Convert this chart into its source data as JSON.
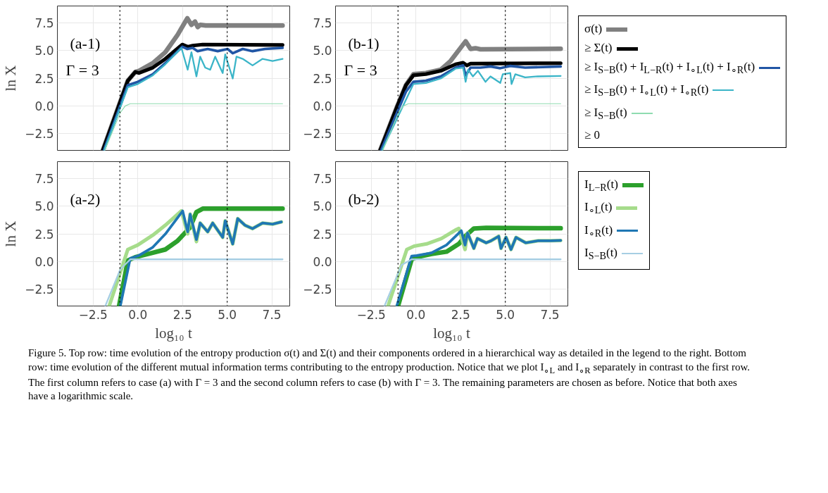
{
  "chart_data": [
    {
      "type": "line",
      "annotations": [
        "(a-1)",
        "Γ = 3"
      ],
      "ylabel": "ln X",
      "xlim": [
        -4.5,
        8.5
      ],
      "ylim": [
        -4,
        9
      ],
      "xticks": [
        {
          "value": -2.5,
          "label": null
        },
        {
          "value": 0,
          "label": null
        },
        {
          "value": 2.5,
          "label": null
        },
        {
          "value": 5,
          "label": null
        },
        {
          "value": 7.5,
          "label": null
        }
      ],
      "yticks": [
        {
          "value": -2.5,
          "label": "−2.5"
        },
        {
          "value": 0,
          "label": "0.0"
        },
        {
          "value": 2.5,
          "label": "2.5"
        },
        {
          "value": 5,
          "label": "5.0"
        },
        {
          "value": 7.5,
          "label": "7.5"
        }
      ],
      "tick_labels": "y",
      "grid": true,
      "ref_lines": [
        {
          "axis": "x",
          "value": -1,
          "color": "#000000",
          "line_style": "dotted"
        },
        {
          "axis": "x",
          "value": 5,
          "color": "#000000",
          "line_style": "dotted"
        }
      ],
      "series": [
        {
          "color": "#808080",
          "x": [
            -1.96,
            -0.56,
            -0.14,
            0.07,
            0.84,
            1.54,
            2.23,
            2.77,
            3.0,
            3.2,
            3.35,
            3.5,
            3.8,
            8.1
          ],
          "values": [
            -4,
            2.27,
            3.06,
            3.16,
            3.85,
            4.84,
            6.41,
            7.9,
            7.3,
            7.6,
            7.1,
            7.3,
            7.24,
            7.24
          ]
        },
        {
          "color": "#000000",
          "x": [
            -1.96,
            -0.56,
            -0.14,
            0.07,
            0.84,
            1.54,
            2.49,
            2.79,
            3.07,
            3.63,
            8.1
          ],
          "values": [
            -4,
            2.27,
            3.06,
            2.96,
            3.45,
            4.24,
            5.53,
            5.33,
            5.43,
            5.53,
            5.49
          ]
        },
        {
          "color": "#2156a5",
          "x": [
            -1.9,
            -0.56,
            0,
            0.84,
            1.54,
            2.49,
            2.77,
            3.07,
            3.35,
            3.91,
            4.47,
            5.03,
            5.31,
            5.87,
            6.42,
            7.12,
            8.1
          ],
          "values": [
            -4,
            1.87,
            2.17,
            2.86,
            3.85,
            5.33,
            5.13,
            5.23,
            4.93,
            5.13,
            4.93,
            5.13,
            4.74,
            5.13,
            4.93,
            5.13,
            5.23
          ]
        },
        {
          "color": "#3bb5c8",
          "x": [
            -1.88,
            -0.56,
            0,
            0.84,
            1.54,
            2.44,
            2.79,
            3.0,
            3.28,
            3.49,
            3.77,
            4.05,
            4.33,
            4.75,
            4.89,
            5.31,
            5.52,
            5.87,
            6.42,
            6.98,
            7.54,
            8.1
          ],
          "values": [
            -4,
            1.68,
            1.97,
            2.76,
            3.75,
            5.23,
            3.26,
            4.84,
            2.66,
            4.44,
            3.45,
            3.26,
            4.44,
            2.96,
            4.64,
            2.47,
            4.44,
            4.24,
            3.65,
            4.24,
            4.05,
            4.24
          ]
        },
        {
          "color": "#8fdcb0",
          "x": [
            -1.85,
            -0.98,
            -0.7,
            -0.42,
            8.1
          ],
          "values": [
            -4,
            -0.6,
            0.0,
            0.2,
            0.2
          ]
        }
      ]
    },
    {
      "type": "line",
      "annotations": [
        "(b-1)",
        "Γ = 3"
      ],
      "xlim": [
        -4.5,
        8.5
      ],
      "ylim": [
        -4,
        9
      ],
      "xticks": [
        {
          "value": -2.5,
          "label": null
        },
        {
          "value": 0,
          "label": null
        },
        {
          "value": 2.5,
          "label": null
        },
        {
          "value": 5,
          "label": null
        },
        {
          "value": 7.5,
          "label": null
        }
      ],
      "yticks": [
        {
          "value": -2.5,
          "label": "−2.5"
        },
        {
          "value": 0,
          "label": "0.0"
        },
        {
          "value": 2.5,
          "label": "2.5"
        },
        {
          "value": 5,
          "label": "5.0"
        },
        {
          "value": 7.5,
          "label": "7.5"
        }
      ],
      "tick_labels": "y",
      "grid": true,
      "legend": "right",
      "ref_lines": [
        {
          "axis": "x",
          "value": -1,
          "color": "#000000",
          "line_style": "dotted"
        },
        {
          "axis": "x",
          "value": 5,
          "color": "#000000",
          "line_style": "dotted"
        }
      ],
      "series": [
        {
          "name": "σ(t)",
          "color": "#808080",
          "x": [
            -2.0,
            -1.04,
            -0.56,
            -0.14,
            0.56,
            1.39,
            1.94,
            2.78,
            3.06,
            3.33,
            3.61,
            8.1
          ],
          "values": [
            -4,
            0,
            1.87,
            2.86,
            2.96,
            3.26,
            4.05,
            5.82,
            5.13,
            5.2,
            5.1,
            5.15
          ]
        },
        {
          "name": "≥ Σ(t)",
          "color": "#000000",
          "x": [
            -2.0,
            -1.04,
            -0.56,
            -0.14,
            0.56,
            1.39,
            2.22,
            2.64,
            2.85,
            3.06,
            8.1
          ],
          "values": [
            -4,
            0,
            1.87,
            2.76,
            2.86,
            3.16,
            3.75,
            3.89,
            3.65,
            3.81,
            3.85
          ]
        },
        {
          "name": "≥ I$_{S−B}$(t) + I$_{L−R}$(t) + I$_{∘L}$(t) + I$_{∘R}$(t)",
          "color": "#2156a5",
          "x": [
            -1.95,
            -0.56,
            -0.14,
            0.56,
            1.39,
            2.22,
            2.64,
            2.78,
            3.06,
            3.61,
            4.17,
            4.72,
            5.28,
            6.11,
            8.1
          ],
          "values": [
            -4,
            1.28,
            2.17,
            2.27,
            2.66,
            3.45,
            3.65,
            2.76,
            3.45,
            3.45,
            3.55,
            3.4,
            3.6,
            3.45,
            3.55
          ]
        },
        {
          "name": "≥ I$_{S−B}$(t) + I$_{∘L}$(t) + I$_{∘R}$(t)",
          "color": "#3bb5c8",
          "x": [
            -1.9,
            -0.14,
            0.56,
            1.39,
            2.22,
            2.64,
            2.78,
            2.92,
            3.19,
            3.47,
            3.89,
            4.17,
            4.72,
            4.86,
            5.28,
            5.35,
            5.56,
            6.11,
            6.81,
            8.1
          ],
          "values": [
            -4,
            1.97,
            2.07,
            2.47,
            3.36,
            3.45,
            2.17,
            3.26,
            2.66,
            3.16,
            2.17,
            2.66,
            2.07,
            2.86,
            2.96,
            1.97,
            2.86,
            2.57,
            2.66,
            2.7
          ]
        },
        {
          "name": "≥ I$_{S−B}$(t)",
          "color": "#8fdcb0",
          "x": [
            -1.85,
            -0.98,
            -0.7,
            -0.42,
            8.1
          ],
          "values": [
            -4,
            -0.6,
            0.0,
            0.2,
            0.2
          ]
        },
        {
          "name": "≥ 0",
          "color": null
        }
      ]
    },
    {
      "type": "line",
      "annotations": [
        "(a-2)"
      ],
      "ylabel": "ln X",
      "xlabel": "log₁₀ t",
      "xlim": [
        -4.5,
        8.5
      ],
      "ylim": [
        -4,
        9
      ],
      "xticks": [
        {
          "value": -2.5,
          "label": "−2.5"
        },
        {
          "value": 0,
          "label": "0.0"
        },
        {
          "value": 2.5,
          "label": "2.5"
        },
        {
          "value": 5,
          "label": "5.0"
        },
        {
          "value": 7.5,
          "label": "7.5"
        }
      ],
      "yticks": [
        {
          "value": -2.5,
          "label": "−2.5"
        },
        {
          "value": 0,
          "label": "0.0"
        },
        {
          "value": 2.5,
          "label": "2.5"
        },
        {
          "value": 5,
          "label": "5.0"
        },
        {
          "value": 7.5,
          "label": "7.5"
        }
      ],
      "grid": true,
      "ref_lines": [
        {
          "axis": "x",
          "value": -1,
          "color": "#000000",
          "line_style": "dotted"
        },
        {
          "axis": "x",
          "value": 5,
          "color": "#000000",
          "line_style": "dotted"
        }
      ],
      "series": [
        {
          "color": "#2ca02c",
          "x": [
            -1.05,
            -0.56,
            -0.14,
            0.84,
            1.54,
            2.23,
            2.93,
            3.28,
            3.63,
            8.1
          ],
          "values": [
            -4,
            0.1,
            0.4,
            0.79,
            1.09,
            1.88,
            3.08,
            4.46,
            4.76,
            4.76
          ]
        },
        {
          "color": "#a6dc8b",
          "x": [
            -1.6,
            -0.56,
            0,
            0.84,
            1.54,
            2.44,
            2.79,
            2.93,
            3.28,
            3.49,
            3.91,
            4.19,
            4.75,
            4.89,
            5.31,
            5.59,
            6.0,
            6.42,
            6.98,
            7.54,
            8.03
          ],
          "values": [
            -4,
            1.09,
            1.49,
            2.38,
            3.27,
            4.56,
            2.5,
            4.27,
            1.8,
            3.47,
            2.68,
            3.47,
            2.18,
            3.67,
            1.59,
            3.87,
            3.27,
            2.97,
            3.47,
            3.37,
            3.57
          ]
        },
        {
          "color": "#1f77b4",
          "x": [
            -0.98,
            -0.42,
            0,
            0.84,
            1.54,
            2.51,
            2.79,
            2.93,
            3.28,
            3.49,
            3.91,
            4.19,
            4.75,
            4.89,
            5.31,
            5.59,
            6.0,
            6.42,
            6.98,
            7.54,
            8.03
          ],
          "values": [
            -4,
            0.3,
            0.5,
            1.29,
            2.48,
            4.56,
            2.68,
            4.27,
            1.98,
            3.47,
            2.68,
            3.47,
            2.18,
            3.67,
            1.59,
            3.87,
            3.27,
            2.97,
            3.47,
            3.37,
            3.57
          ]
        },
        {
          "color": "#a6cee3",
          "x": [
            -1.82,
            -0.98,
            -0.42,
            8.1
          ],
          "values": [
            -4,
            -0.7,
            0.2,
            0.2
          ]
        }
      ]
    },
    {
      "type": "line",
      "annotations": [
        "(b-2)",
        "Figure 5. Top row: time evolution of the entropy production σ(t) and Σ(t) and their components ordered in a hierarchical way as detailed in the legend to the right. Bottom row: time evolution of the different mutual information terms contributing to the entropy production. Notice that we plot I$_{∘L}$ and I$_{∘R}$ separately in contrast to the first row. The first column refers to case (a) with Γ = 3 and the second column refers to case (b) with Γ = 3. The remaining parameters are chosen as before. Notice that both axes have a logarithmic scale."
      ],
      "xlabel": "log₁₀ t",
      "xlim": [
        -4.5,
        8.5
      ],
      "ylim": [
        -4,
        9
      ],
      "xticks": [
        {
          "value": -2.5,
          "label": "−2.5"
        },
        {
          "value": 0,
          "label": "0.0"
        },
        {
          "value": 2.5,
          "label": "2.5"
        },
        {
          "value": 5,
          "label": "5.0"
        },
        {
          "value": 7.5,
          "label": "7.5"
        }
      ],
      "yticks": [
        {
          "value": -2.5,
          "label": "−2.5"
        },
        {
          "value": 0,
          "label": "0.0"
        },
        {
          "value": 2.5,
          "label": "2.5"
        },
        {
          "value": 5,
          "label": "5.0"
        },
        {
          "value": 7.5,
          "label": "7.5"
        }
      ],
      "grid": true,
      "legend": "right",
      "ref_lines": [
        {
          "axis": "x",
          "value": -1,
          "color": "#000000",
          "line_style": "dotted"
        },
        {
          "axis": "x",
          "value": 5,
          "color": "#000000",
          "line_style": "dotted"
        }
      ],
      "series": [
        {
          "name": "I$_{L−R}$(t)",
          "color": "#2ca02c",
          "x": [
            -1.0,
            -0.24,
            0.04,
            0.88,
            1.71,
            2.4,
            2.82,
            3.24,
            3.93,
            8.1
          ],
          "values": [
            -4,
            0.2,
            0.4,
            0.69,
            0.89,
            1.59,
            2.38,
            2.98,
            3.04,
            3.0
          ]
        },
        {
          "name": "I$_{∘L}$(t)",
          "color": "#a6dc8b",
          "x": [
            -1.56,
            -0.51,
            -0.1,
            0.6,
            1.43,
            2.26,
            2.4,
            2.75,
            2.89,
            3.24,
            3.44,
            3.93,
            4.21,
            4.63,
            4.76,
            5.04,
            5.32,
            5.6,
            6.15,
            6.85,
            7.54,
            8.1
          ],
          "values": [
            -4,
            1.09,
            1.39,
            1.59,
            2.08,
            2.88,
            2.98,
            1.09,
            2.58,
            1.19,
            2.08,
            1.69,
            1.88,
            2.28,
            1.19,
            2.18,
            1.09,
            2.18,
            1.69,
            1.88,
            1.88,
            1.9
          ]
        },
        {
          "name": "I$_{∘R}$(t)",
          "color": "#1f77b4",
          "x": [
            -1.07,
            -0.24,
            0.04,
            0.88,
            1.71,
            2.54,
            2.75,
            2.89,
            3.24,
            3.44,
            3.93,
            4.21,
            4.63,
            4.76,
            5.04,
            5.32,
            5.6,
            6.15,
            6.85,
            7.54,
            8.1
          ],
          "values": [
            -4,
            0.5,
            0.54,
            0.79,
            1.49,
            2.78,
            1.49,
            2.58,
            1.19,
            2.08,
            1.69,
            1.88,
            2.28,
            1.19,
            2.18,
            1.09,
            2.18,
            1.69,
            1.88,
            1.88,
            1.9
          ]
        },
        {
          "name": "I$_{S−B}$(t)",
          "color": "#a6cee3",
          "x": [
            -1.76,
            -0.8,
            -0.24,
            8.1
          ],
          "values": [
            -4,
            -0.3,
            0.2,
            0.2
          ]
        }
      ]
    }
  ]
}
